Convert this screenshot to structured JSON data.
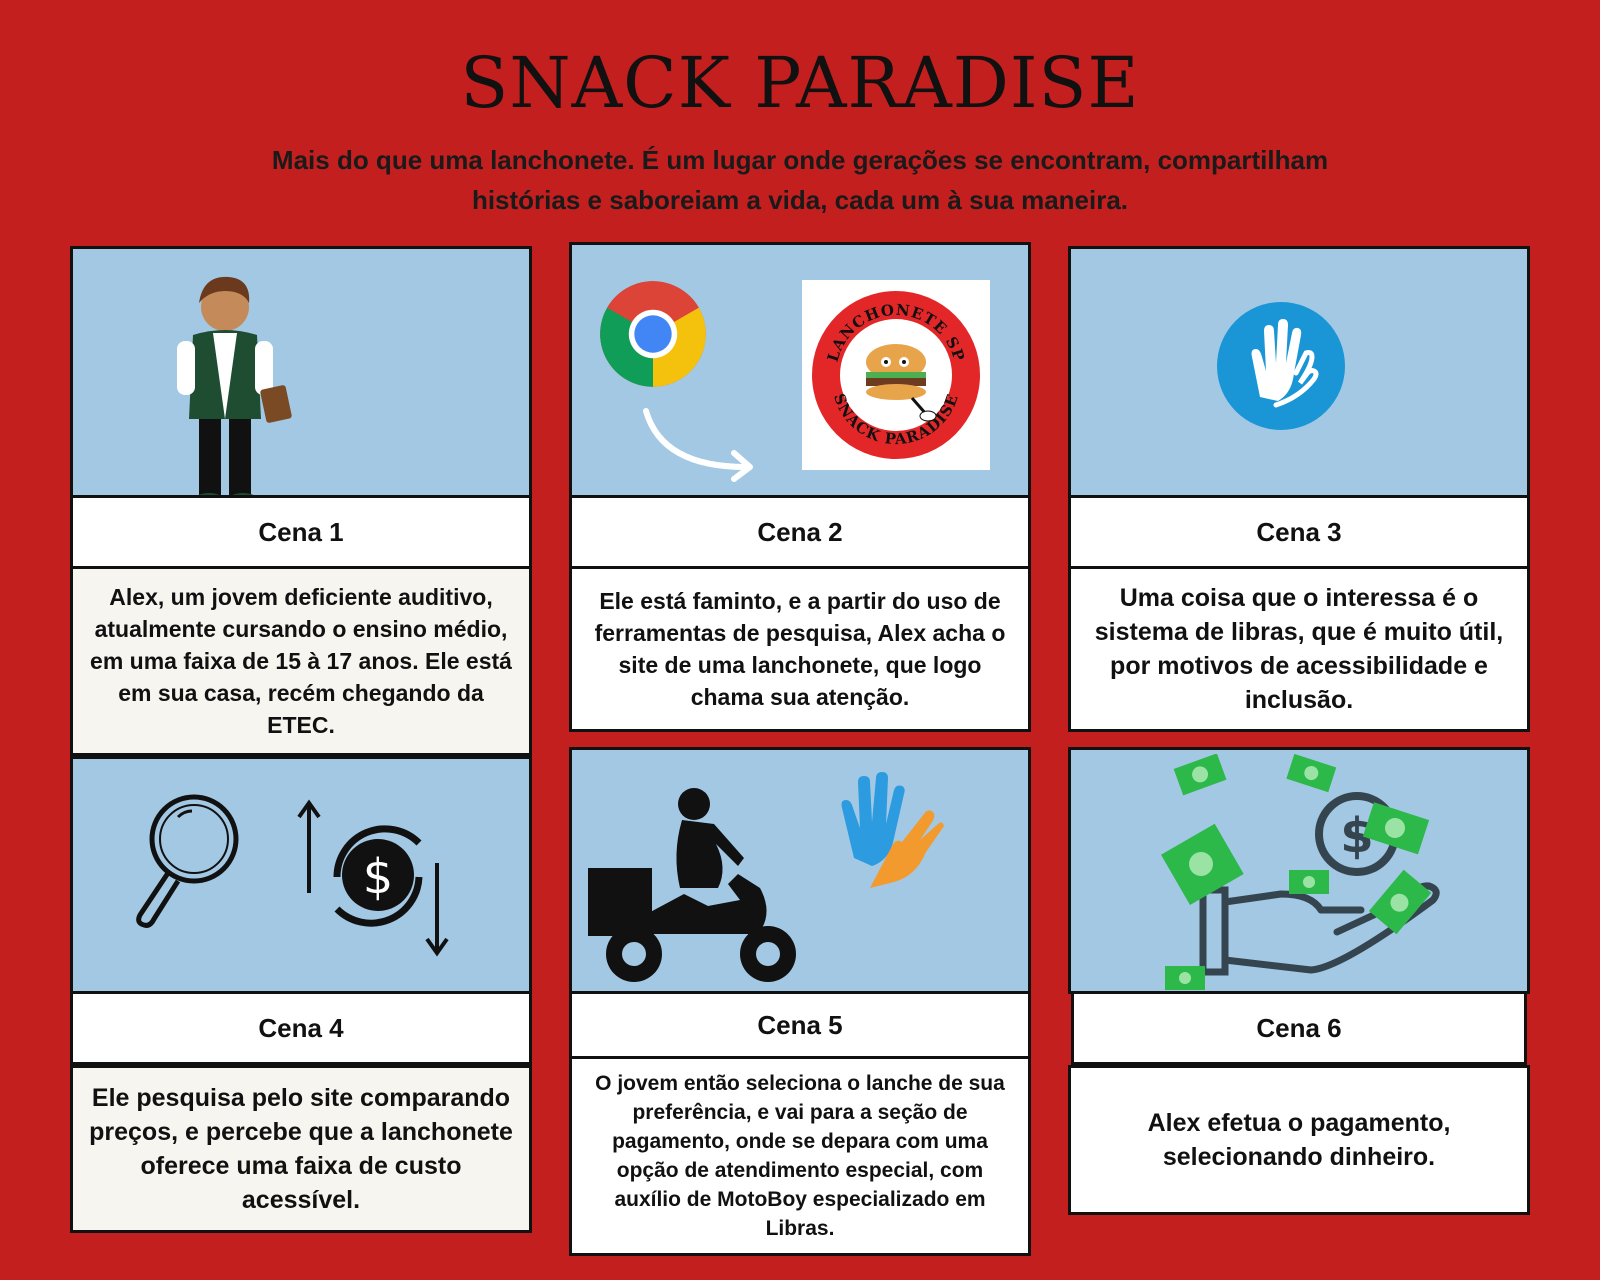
{
  "header": {
    "title": "SNACK PARADISE",
    "subtitle": "Mais do que uma lanchonete. É um lugar onde gerações se encontram, compartilham histórias e saboreiam a vida, cada um à sua maneira."
  },
  "scenes": [
    {
      "label": "Cena 1",
      "text": "Alex, um jovem deficiente auditivo, atualmente cursando o ensino médio, em uma faixa de 15 à 17 anos. Ele está em sua casa, recém chegando da ETEC."
    },
    {
      "label": "Cena 2",
      "text": "Ele está faminto, e a partir do uso de ferramentas de pesquisa, Alex acha o site de uma lanchonete, que logo chama sua atenção."
    },
    {
      "label": "Cena 3",
      "text": "Uma coisa que o interessa é o sistema de libras, que é muito útil, por motivos de acessibilidade e inclusão."
    },
    {
      "label": "Cena 4",
      "text": "Ele pesquisa pelo site comparando preços, e percebe que a lanchonete oferece uma faixa de custo acessível."
    },
    {
      "label": "Cena 5",
      "text": "O jovem então seleciona o lanche de sua preferência, e vai para a seção de pagamento, onde se depara com uma opção de atendimento especial, com auxílio de MotoBoy especializado em Libras."
    },
    {
      "label": "Cena 6",
      "text": "Alex efetua o pagamento, selecionando dinheiro."
    }
  ],
  "logo": {
    "top_text": "LANCHONETE SP",
    "bottom_text": "SNACK PARADISE"
  },
  "colors": {
    "background": "#c41f1f",
    "panel_sky": "#a2c8e3",
    "libras_blue": "#1a96d6",
    "money_green": "#2db84a"
  }
}
